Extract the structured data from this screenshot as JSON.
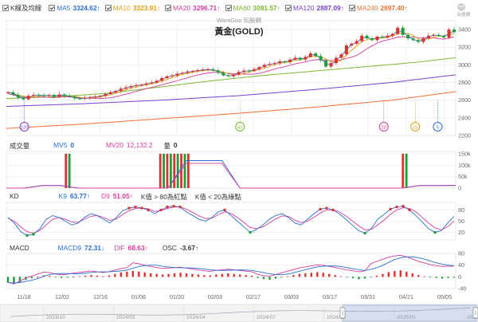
{
  "header": {
    "legend": [
      {
        "key": "K線及均線",
        "value": "",
        "color": "#333333"
      },
      {
        "key": "MA5",
        "value": "3324.62↑",
        "color": "#2a6fd6"
      },
      {
        "key": "MA10",
        "value": "3323.91↑",
        "color": "#e0a010"
      },
      {
        "key": "MA20",
        "value": "3296.71↑",
        "color": "#d43c9c"
      },
      {
        "key": "MA60",
        "value": "3081.57↑",
        "color": "#7cb82f"
      },
      {
        "key": "MA120",
        "value": "2887.09↑",
        "color": "#7a3fd0"
      },
      {
        "key": "MA240",
        "value": "2697.40↑",
        "color": "#f07030"
      }
    ],
    "watermark": "WantGoo 玩股網",
    "chart_title": "黃金(GOLD)",
    "logo_text": "玩股網"
  },
  "volume_pane": {
    "label": "成交量",
    "mv5_label": "MV5",
    "mv5_value": "0",
    "mv20_label": "MV20",
    "mv20_value": "12,132.2",
    "qty_label": "量",
    "qty_value": "0"
  },
  "kd_pane": {
    "label": "KD",
    "k_label": "K9",
    "k_value": "63.77↑",
    "d_label": "D9",
    "d_value": "51.05↑",
    "note1": "K值 > 80為紅點",
    "note2": "K值 < 20為綠點"
  },
  "macd_pane": {
    "label": "MACD",
    "macd_label": "MACD9",
    "macd_value": "72.31↓",
    "dif_label": "DIF",
    "dif_value": "68.63↑",
    "osc_label": "OSC",
    "osc_value": "-3.67↑"
  },
  "x_axis_dates": [
    "11/18",
    "12/02",
    "12/16",
    "01/06",
    "01/20",
    "02/03",
    "02/17",
    "03/03",
    "03/17",
    "03/31",
    "04/21",
    "05/05"
  ],
  "nav_dates": [
    "2023/10",
    "2024/01",
    "2024/04",
    "2024/07",
    "2024/10",
    "2025/01",
    "2025/04"
  ],
  "colors": {
    "up": "#e03131",
    "down": "#1f9d3a",
    "ma5": "#2a6fd6",
    "ma10": "#e0a010",
    "ma20": "#d43c9c",
    "ma60": "#7cb82f",
    "ma120": "#7a3fd0",
    "ma240": "#f07030",
    "k": "#2a6fd6",
    "d": "#d43c9c",
    "grid": "#e6e6e6",
    "axis": "#666666"
  },
  "chart_data": [
    {
      "type": "candlestick",
      "title": "黃金(GOLD)",
      "y_ticks": [
        2200,
        2400,
        2600,
        2800,
        3000,
        3200,
        3400
      ],
      "ylim": [
        2200,
        3500
      ],
      "date_labels": [
        "11/18",
        "12/02",
        "12/16",
        "01/06",
        "01/20",
        "02/03",
        "02/17",
        "03/03",
        "03/17",
        "03/31",
        "04/21",
        "05/05"
      ],
      "close_trend": [
        2690,
        2660,
        2630,
        2610,
        2650,
        2660,
        2655,
        2650,
        2660,
        2640,
        2665,
        2650,
        2640,
        2620,
        2615,
        2625,
        2635,
        2640,
        2650,
        2670,
        2690,
        2705,
        2730,
        2745,
        2760,
        2770,
        2775,
        2790,
        2800,
        2820,
        2850,
        2870,
        2880,
        2900,
        2910,
        2925,
        2930,
        2940,
        2945,
        2950,
        2935,
        2910,
        2880,
        2870,
        2890,
        2920,
        2935,
        2930,
        2950,
        2975,
        3000,
        3010,
        3020,
        3040,
        3030,
        3060,
        3080,
        3060,
        3090,
        3130,
        3100,
        3050,
        2980,
        3020,
        3080,
        3120,
        3220,
        3240,
        3270,
        3330,
        3300,
        3280,
        3320,
        3310,
        3330,
        3350,
        3420,
        3340,
        3300,
        3280,
        3260,
        3300,
        3330,
        3340,
        3330,
        3310,
        3400,
        3370
      ],
      "ma_series": [
        {
          "name": "MA60",
          "points": [
            [
              0,
              2620
            ],
            [
              20,
              2640
            ],
            [
              40,
              2680
            ],
            [
              60,
              2750
            ],
            [
              80,
              2820
            ],
            [
              100,
              2880
            ],
            [
              120,
              2930
            ],
            [
              140,
              2980
            ],
            [
              160,
              3030
            ],
            [
              175,
              3081
            ]
          ]
        },
        {
          "name": "MA120",
          "points": [
            [
              0,
              2530
            ],
            [
              30,
              2560
            ],
            [
              60,
              2600
            ],
            [
              90,
              2650
            ],
            [
              120,
              2720
            ],
            [
              150,
              2800
            ],
            [
              175,
              2887
            ]
          ]
        },
        {
          "name": "MA240",
          "points": [
            [
              0,
              2280
            ],
            [
              30,
              2330
            ],
            [
              60,
              2390
            ],
            [
              90,
              2450
            ],
            [
              120,
              2520
            ],
            [
              150,
              2600
            ],
            [
              175,
              2697
            ]
          ]
        }
      ],
      "event_markers": [
        {
          "label": "120",
          "x_frac": 0.04,
          "color": "#7a3fd0"
        },
        {
          "label": "60",
          "x_frac": 0.52,
          "color": "#7cb82f"
        },
        {
          "label": "20",
          "x_frac": 0.84,
          "color": "#d43c9c"
        },
        {
          "label": "10",
          "x_frac": 0.91,
          "color": "#e0a010"
        },
        {
          "label": "5",
          "x_frac": 0.96,
          "color": "#2a6fd6"
        }
      ]
    },
    {
      "type": "bar",
      "title": "成交量",
      "y_ticks": [
        "0",
        "50k",
        "100k",
        "150k"
      ],
      "ylim": [
        0,
        160000
      ],
      "bursts": [
        {
          "x_frac": 0.13,
          "values": [
            150000,
            150000
          ]
        },
        {
          "x_frac": 0.34,
          "values": [
            150000,
            150000,
            150000,
            150000,
            150000,
            150000,
            150000,
            150000,
            150000
          ]
        },
        {
          "x_frac": 0.88,
          "values": [
            150000,
            150000
          ]
        }
      ],
      "mv20": [
        0,
        0,
        12000,
        12000,
        0,
        0,
        0,
        0,
        0,
        0,
        120000,
        120000,
        120000,
        0,
        0,
        0,
        0,
        0,
        0,
        0,
        0,
        0,
        0,
        12000,
        12000,
        12132
      ]
    },
    {
      "type": "line",
      "title": "KD",
      "y_ticks": [
        20,
        50,
        80
      ],
      "ylim": [
        0,
        100
      ],
      "series": [
        {
          "name": "K9",
          "values": [
            60,
            45,
            22,
            12,
            15,
            30,
            55,
            65,
            60,
            50,
            40,
            45,
            60,
            70,
            65,
            55,
            45,
            60,
            78,
            85,
            88,
            85,
            80,
            70,
            80,
            88,
            90,
            88,
            75,
            65,
            55,
            50,
            60,
            75,
            80,
            65,
            50,
            35,
            20,
            28,
            40,
            55,
            65,
            70,
            60,
            45,
            40,
            55,
            70,
            82,
            85,
            80,
            70,
            55,
            40,
            25,
            18,
            30,
            55,
            68,
            82,
            88,
            90,
            80,
            65,
            48,
            30,
            20,
            25,
            45,
            63
          ]
        },
        {
          "name": "D9",
          "values": [
            58,
            50,
            35,
            22,
            18,
            25,
            40,
            55,
            60,
            55,
            48,
            47,
            55,
            63,
            65,
            60,
            52,
            56,
            68,
            78,
            84,
            85,
            83,
            76,
            78,
            84,
            88,
            88,
            82,
            73,
            64,
            57,
            58,
            67,
            75,
            70,
            60,
            47,
            33,
            30,
            35,
            45,
            56,
            64,
            63,
            53,
            46,
            50,
            60,
            72,
            80,
            80,
            75,
            64,
            51,
            38,
            27,
            28,
            40,
            53,
            68,
            80,
            86,
            84,
            75,
            60,
            45,
            32,
            27,
            35,
            51
          ]
        }
      ],
      "red_dots_k_above": 80,
      "green_dots_k_below": 20
    },
    {
      "type": "bar",
      "title": "MACD",
      "y_ticks": [
        "80",
        "40",
        "0",
        "-40"
      ],
      "osc": [
        -20,
        -25,
        -18,
        -10,
        -5,
        0,
        5,
        3,
        -2,
        -4,
        -3,
        0,
        2,
        4,
        6,
        4,
        2,
        5,
        10,
        15,
        18,
        20,
        18,
        15,
        12,
        10,
        8,
        10,
        12,
        14,
        12,
        10,
        8,
        6,
        5,
        8,
        10,
        12,
        10,
        8,
        6,
        4,
        -4,
        -8,
        -10,
        -6,
        -2,
        2,
        6,
        10,
        12,
        14,
        16,
        14,
        10,
        6,
        2,
        -2,
        -5,
        -8,
        -6,
        -2,
        4,
        10,
        16,
        20,
        22,
        18,
        12,
        6,
        2,
        -2,
        -4,
        -6,
        -4,
        -3
      ]
    }
  ]
}
